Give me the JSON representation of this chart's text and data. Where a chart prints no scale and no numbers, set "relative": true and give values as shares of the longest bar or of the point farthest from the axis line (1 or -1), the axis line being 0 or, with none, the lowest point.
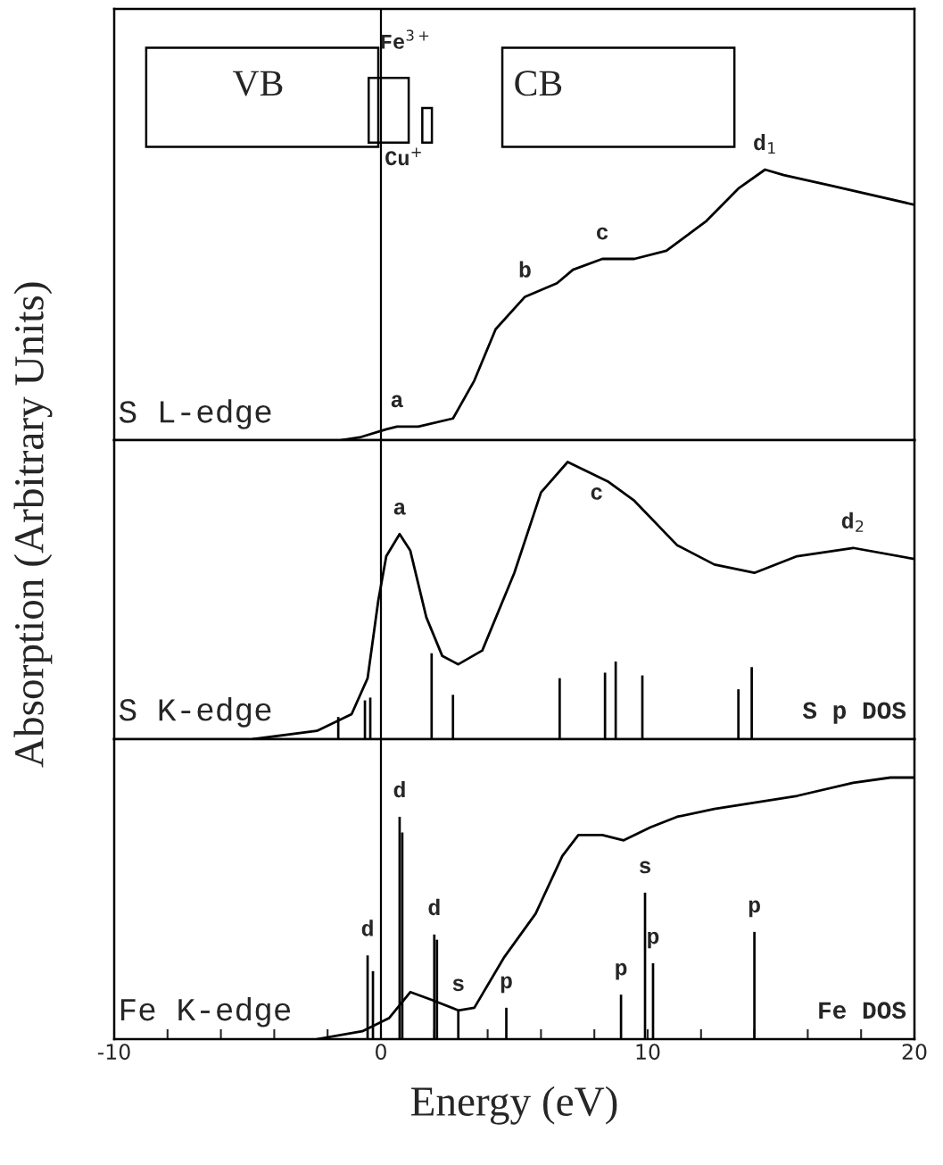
{
  "chart_data": [
    {
      "type": "line",
      "relative": true,
      "xlim": [
        -10,
        20
      ],
      "tick_labels": false,
      "ylabel": "Absorption (Arbitrary Units)",
      "series": [
        {
          "color": "#000000",
          "x": [
            -1.5,
            -0.8,
            0.2,
            0.6,
            1.4,
            2.7,
            3.5,
            4.3,
            5.4,
            6.6,
            7.2,
            8.3,
            9.5,
            10.7,
            12.2,
            13.4,
            14.4,
            15.1,
            16.9,
            20
          ],
          "values": [
            0,
            0.01,
            0.04,
            0.05,
            0.05,
            0.08,
            0.22,
            0.41,
            0.53,
            0.58,
            0.63,
            0.67,
            0.67,
            0.7,
            0.81,
            0.93,
            1.0,
            0.98,
            0.94,
            0.87
          ]
        }
      ],
      "ref_lines": [
        {
          "axis": "x",
          "value": 0,
          "color": "#000000"
        }
      ],
      "annotations": [
        "S L-edge",
        "VB",
        "CB",
        "Fe$^{3+}$",
        "Cu$^{+}$",
        {
          "text": "a",
          "x": 0.6,
          "y": 0.05
        },
        {
          "text": "b",
          "x": 5.4,
          "y": 0.53
        },
        {
          "text": "c",
          "x": 8.3,
          "y": 0.67
        },
        {
          "text": "d$_{1}$",
          "x": 14.4,
          "y": 1.0
        }
      ]
    },
    {
      "type": "line",
      "relative": true,
      "xlim": [
        -10,
        20
      ],
      "tick_labels": false,
      "series": [
        {
          "color": "#000000",
          "x": [
            -4.8,
            -2.4,
            -1.1,
            -0.5,
            -0.1,
            0.2,
            0.7,
            1.1,
            1.7,
            2.3,
            2.9,
            3.8,
            5.0,
            6.0,
            7.0,
            8.5,
            9.5,
            11.1,
            12.5,
            14.0,
            15.6,
            17.7,
            20
          ],
          "values": [
            0,
            0.03,
            0.09,
            0.22,
            0.5,
            0.66,
            0.74,
            0.68,
            0.44,
            0.3,
            0.27,
            0.32,
            0.6,
            0.89,
            1.0,
            0.93,
            0.86,
            0.7,
            0.63,
            0.6,
            0.66,
            0.69,
            0.65
          ]
        },
        {
          "type": "bar",
          "color": "#000000",
          "x": [
            -1.6,
            -0.6,
            -0.4,
            1.9,
            2.7,
            6.7,
            8.4,
            8.8,
            9.8,
            13.4,
            13.9
          ],
          "values": [
            0.08,
            0.14,
            0.15,
            0.31,
            0.16,
            0.22,
            0.24,
            0.28,
            0.23,
            0.18,
            0.26
          ]
        }
      ],
      "ref_lines": [
        {
          "axis": "x",
          "value": 0,
          "color": "#000000"
        }
      ],
      "annotations": [
        "S K-edge",
        "S p DOS",
        {
          "text": "a",
          "x": 0.7,
          "y": 0.74
        },
        {
          "text": "c",
          "x": 7.0,
          "y": 1.0
        },
        {
          "text": "d$_{2}$",
          "x": 17.7,
          "y": 0.69
        }
      ]
    },
    {
      "type": "line",
      "relative": true,
      "xlim": [
        -10,
        20
      ],
      "tick_labels": "x",
      "xlabel": "Energy (eV)",
      "xticks": [
        -10,
        {
          "value": -8,
          "label": null
        },
        {
          "value": -6,
          "label": null
        },
        {
          "value": -4,
          "label": null
        },
        {
          "value": -2,
          "label": null
        },
        0,
        {
          "value": 2,
          "label": null
        },
        {
          "value": 4,
          "label": null
        },
        {
          "value": 6,
          "label": null
        },
        {
          "value": 8,
          "label": null
        },
        10,
        {
          "value": 12,
          "label": null
        },
        {
          "value": 14,
          "label": null
        },
        {
          "value": 16,
          "label": null
        },
        {
          "value": 18,
          "label": null
        },
        20
      ],
      "series": [
        {
          "color": "#000000",
          "x": [
            -2.4,
            -0.7,
            0.3,
            1.1,
            1.9,
            2.9,
            3.5,
            4.6,
            5.8,
            6.8,
            7.4,
            8.3,
            9.1,
            10.1,
            11.1,
            12.5,
            15.6,
            17.7,
            19.1,
            20
          ],
          "values": [
            0,
            0.03,
            0.08,
            0.18,
            0.15,
            0.11,
            0.12,
            0.31,
            0.48,
            0.7,
            0.78,
            0.78,
            0.76,
            0.81,
            0.85,
            0.88,
            0.93,
            0.98,
            1.0,
            1.0
          ]
        },
        {
          "type": "bar",
          "color": "#000000",
          "x": [
            -0.5,
            -0.3,
            0.7,
            0.8,
            2.0,
            2.1,
            2.9,
            4.7,
            9.0,
            9.9,
            10.2,
            14.0
          ],
          "values": [
            0.32,
            0.26,
            0.85,
            0.79,
            0.4,
            0.38,
            0.11,
            0.12,
            0.17,
            0.56,
            0.29,
            0.41
          ]
        }
      ],
      "ref_lines": [
        {
          "axis": "x",
          "value": 0,
          "color": "#000000"
        }
      ],
      "annotations": [
        "Fe K-edge",
        "Fe DOS",
        {
          "text": "d",
          "x": -0.5,
          "y": 0.32
        },
        {
          "text": "d",
          "x": 0.7,
          "y": 0.85
        },
        {
          "text": "d",
          "x": 2.0,
          "y": 0.4
        },
        {
          "text": "s",
          "x": 2.9,
          "y": 0.11
        },
        {
          "text": "p",
          "x": 4.7,
          "y": 0.12
        },
        {
          "text": "p",
          "x": 9.0,
          "y": 0.17
        },
        {
          "text": "s",
          "x": 9.9,
          "y": 0.56
        },
        {
          "text": "p",
          "x": 10.2,
          "y": 0.29
        },
        {
          "text": "p",
          "x": 14.0,
          "y": 0.41
        }
      ]
    }
  ]
}
